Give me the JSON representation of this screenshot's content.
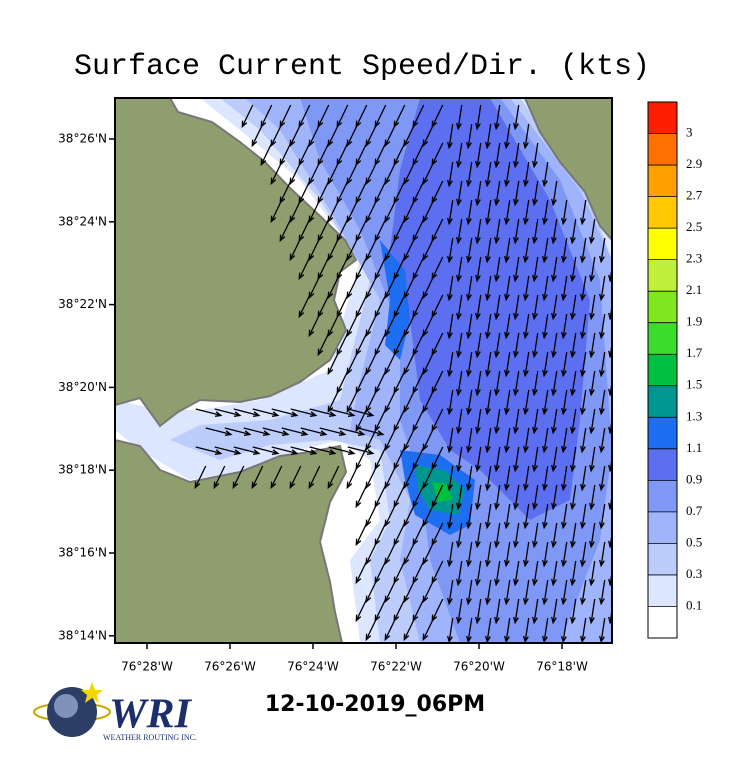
{
  "title": "Surface Current Speed/Dir. (kts)",
  "lat_ticks": [
    "38°26'N",
    "38°24'N",
    "38°22'N",
    "38°20'N",
    "38°18'N",
    "38°16'N",
    "38°14'N"
  ],
  "lon_ticks": [
    "76°28'W",
    "76°26'W",
    "76°24'W",
    "76°22'W",
    "76°20'W",
    "76°18'W"
  ],
  "colorbar": {
    "levels": [
      3,
      2.9,
      2.7,
      2.5,
      2.3,
      2.1,
      1.9,
      1.7,
      1.5,
      1.3,
      1.1,
      0.9,
      0.7,
      0.5,
      0.3,
      0.1
    ],
    "colors": [
      "#ff1e00",
      "#ff7000",
      "#ffa000",
      "#ffc800",
      "#ffff00",
      "#c0f03c",
      "#80e61e",
      "#3cdc2d",
      "#00c040",
      "#009690",
      "#1e6ef2",
      "#5c6ff0",
      "#7f98f5",
      "#9fb4fa",
      "#bccdfc",
      "#dde6ff",
      "#ffffff"
    ]
  },
  "timestamp": "12-10-2019_06PM",
  "logo": {
    "name": "WRI",
    "subtitle": "WEATHER ROUTING INC."
  }
}
